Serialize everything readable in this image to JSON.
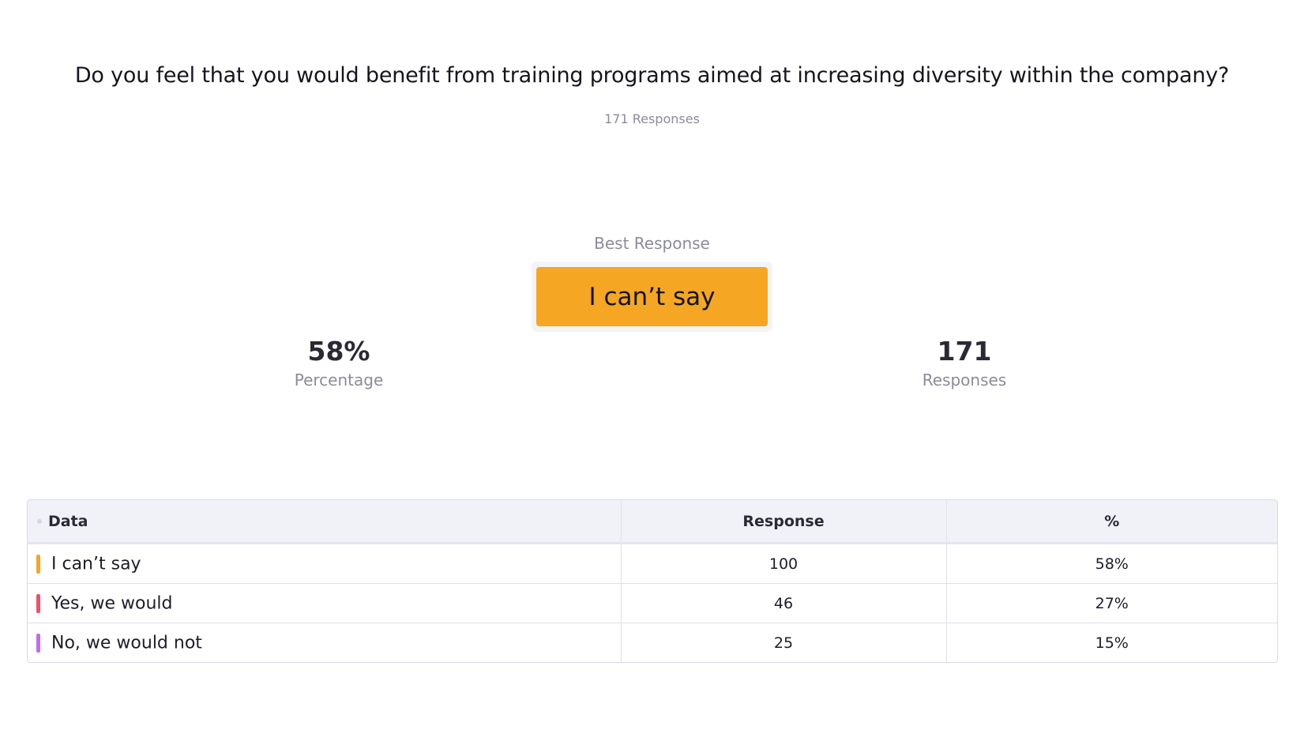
{
  "question": "Do you feel that you would benefit from training programs aimed at increasing diversity within the company?",
  "response_count_label": "171 Responses",
  "best_response": {
    "label": "Best Response",
    "value": "I can’t say",
    "color": "#f5a623"
  },
  "stats": {
    "percentage": {
      "value": "58%",
      "label": "Percentage"
    },
    "responses": {
      "value": "171",
      "label": "Responses"
    }
  },
  "table": {
    "headers": {
      "data": "Data",
      "response": "Response",
      "percent": "%"
    },
    "rows": [
      {
        "label": "I can’t say",
        "response": "100",
        "percent": "58%",
        "color": "#f5a623"
      },
      {
        "label": "Yes, we would",
        "response": "46",
        "percent": "27%",
        "color": "#f0506e"
      },
      {
        "label": "No, we would not",
        "response": "25",
        "percent": "15%",
        "color": "#c16cf2"
      }
    ]
  }
}
